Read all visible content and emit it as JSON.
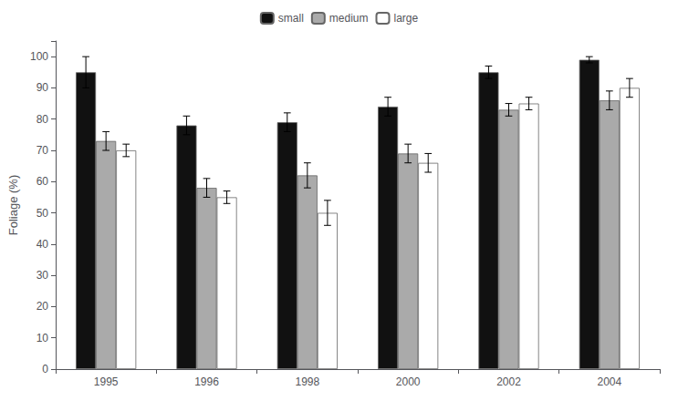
{
  "chart_data": {
    "type": "bar",
    "categories": [
      "1995",
      "1996",
      "1998",
      "2000",
      "2002",
      "2004"
    ],
    "ylabel": "Foliage (%)",
    "ylim": [
      0,
      105
    ],
    "yticks": [
      0,
      10,
      20,
      30,
      40,
      50,
      60,
      70,
      80,
      90,
      100
    ],
    "grid": false,
    "legend": "top",
    "series": [
      {
        "name": "small",
        "color": "#111111",
        "values": [
          95,
          78,
          79,
          84,
          95,
          99
        ],
        "errors": [
          5,
          3,
          3,
          3,
          2,
          1
        ]
      },
      {
        "name": "medium",
        "color": "#aaaaaa",
        "values": [
          73,
          58,
          62,
          69,
          83,
          86
        ],
        "errors": [
          3,
          3,
          4,
          3,
          2,
          3
        ]
      },
      {
        "name": "large",
        "color": "#ffffff",
        "values": [
          70,
          55,
          50,
          66,
          85,
          90
        ],
        "errors": [
          2,
          2,
          4,
          3,
          2,
          3
        ]
      }
    ]
  }
}
